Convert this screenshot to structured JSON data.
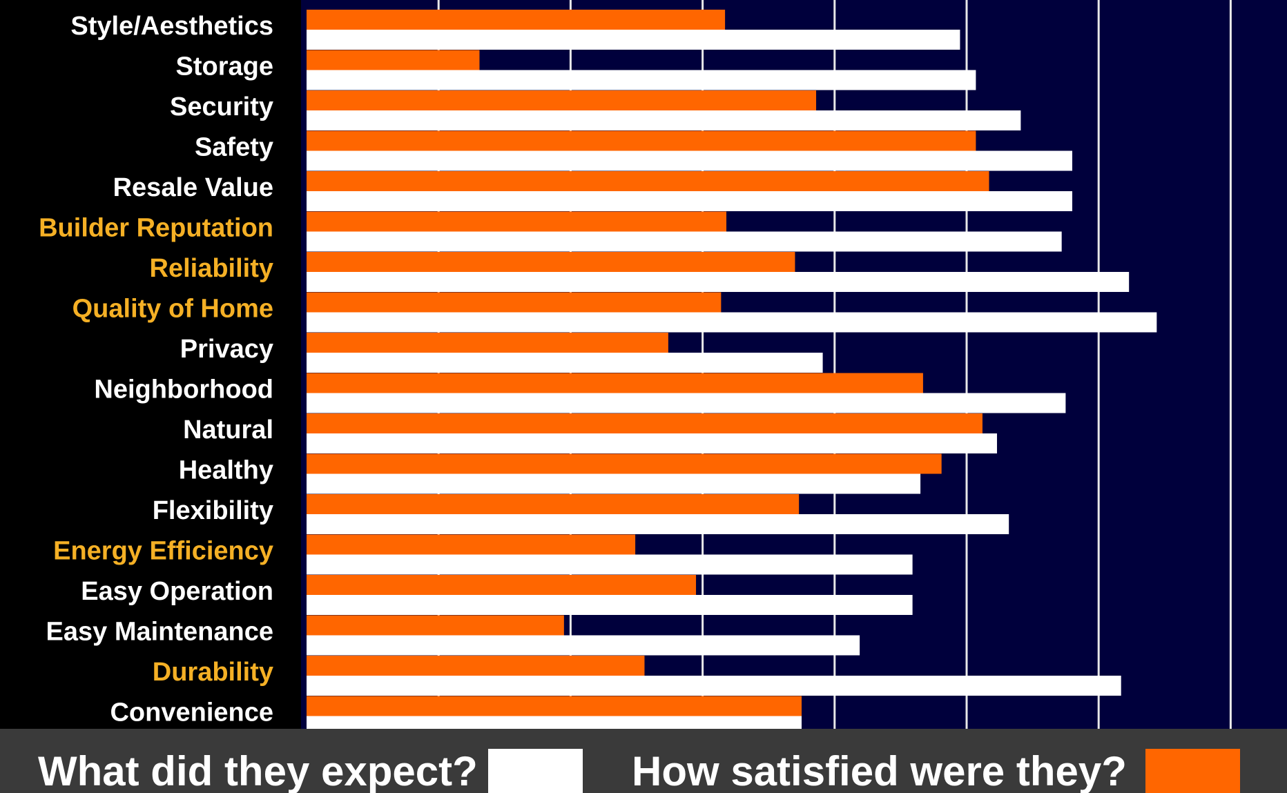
{
  "colors": {
    "background": "#000000",
    "plot_background": "#00003c",
    "gridline": "#e8e8e8",
    "expected": "#ffffff",
    "satisfied": "#ff6600",
    "label_default": "#ffffff",
    "label_highlight": "#f5b025",
    "legend_band": "#3a3a3a"
  },
  "legend": {
    "expected_label": "What did they expect?",
    "satisfied_label": "How satisfied were they?"
  },
  "chart_data": {
    "type": "bar",
    "orientation": "horizontal",
    "categories": [
      "Style/Aesthetics",
      "Storage",
      "Security",
      "Safety",
      "Resale Value",
      "Builder Reputation",
      "Reliability",
      "Quality of Home",
      "Privacy",
      "Neighborhood",
      "Natural",
      "Healthy",
      "Flexibility",
      "Energy Efficiency",
      "Easy Operation",
      "Easy Maintenance",
      "Durability",
      "Convenience"
    ],
    "highlighted_categories": [
      "Builder Reputation",
      "Reliability",
      "Quality of Home",
      "Energy Efficiency",
      "Durability"
    ],
    "series": [
      {
        "name": "What did they expect?",
        "color": "#ffffff",
        "values": [
          4.95,
          5.07,
          5.41,
          5.8,
          5.8,
          5.72,
          6.23,
          6.44,
          3.91,
          5.75,
          5.23,
          4.65,
          5.32,
          4.59,
          4.59,
          4.19,
          6.17,
          3.75
        ]
      },
      {
        "name": "How satisfied were they?",
        "color": "#ff6600",
        "values": [
          3.17,
          1.31,
          3.86,
          5.07,
          5.17,
          3.18,
          3.7,
          3.14,
          2.74,
          4.67,
          5.12,
          4.81,
          3.73,
          2.49,
          2.95,
          1.95,
          2.56,
          3.75
        ]
      }
    ],
    "xlim": [
      0,
      7.25
    ],
    "x_gridlines": [
      1,
      2,
      3,
      4,
      5,
      6,
      7
    ],
    "grid": true,
    "legend_position": "bottom"
  }
}
